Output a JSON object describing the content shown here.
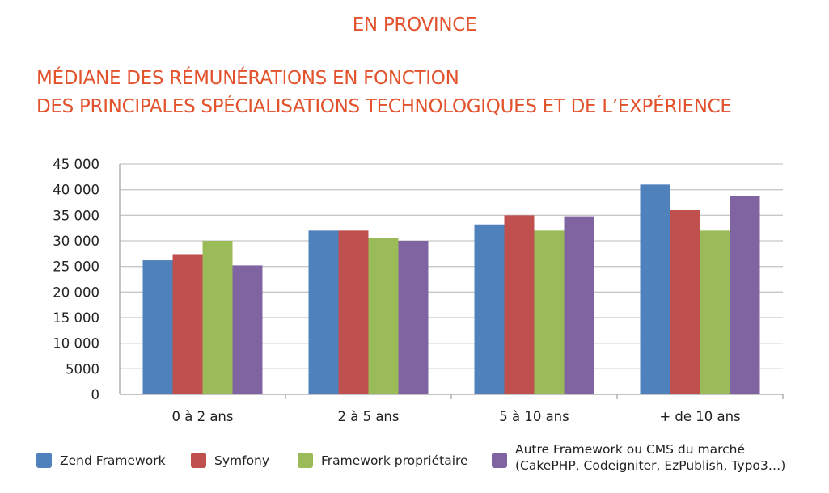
{
  "header": {
    "region": "EN PROVINCE",
    "title_line1": "MÉDIANE DES RÉMUNÉRATIONS EN FONCTION",
    "title_line2": "DES PRINCIPALES SPÉCIALISATIONS TECHNOLOGIQUES ET DE L’EXPÉRIENCE"
  },
  "colors": {
    "title": "#e2522d",
    "series": [
      "#4f81bd",
      "#c0504d",
      "#9bbb59",
      "#8064a2"
    ]
  },
  "chart_data": {
    "type": "bar",
    "categories": [
      "0 à 2 ans",
      "2 à 5 ans",
      "5 à 10 ans",
      "+ de 10 ans"
    ],
    "series": [
      {
        "name": "Zend Framework",
        "values": [
          26200,
          32000,
          33200,
          41000
        ]
      },
      {
        "name": "Symfony",
        "values": [
          27400,
          32000,
          35000,
          36000
        ]
      },
      {
        "name": "Framework propriétaire",
        "values": [
          30000,
          30500,
          32000,
          32000
        ]
      },
      {
        "name": "Autre Framework ou CMS du marché (CakePHP, Codeigniter, EzPublish, Typo3…)",
        "name_lines": [
          "Autre Framework ou CMS du marché",
          "(CakePHP, Codeigniter, EzPublish, Typo3…)"
        ],
        "values": [
          25200,
          30000,
          34800,
          38700
        ]
      }
    ],
    "yticks": [
      "0",
      "5000",
      "10 000",
      "15 000",
      "20 000",
      "25 000",
      "30 000",
      "35 000",
      "40 000",
      "45 000"
    ],
    "ylim": [
      0,
      45000
    ],
    "grid": true,
    "legend": "bottom",
    "title": "MÉDIANE DES RÉMUNÉRATIONS EN FONCTION DES PRINCIPALES SPÉCIALISATIONS TECHNOLOGIQUES ET DE L’EXPÉRIENCE"
  }
}
